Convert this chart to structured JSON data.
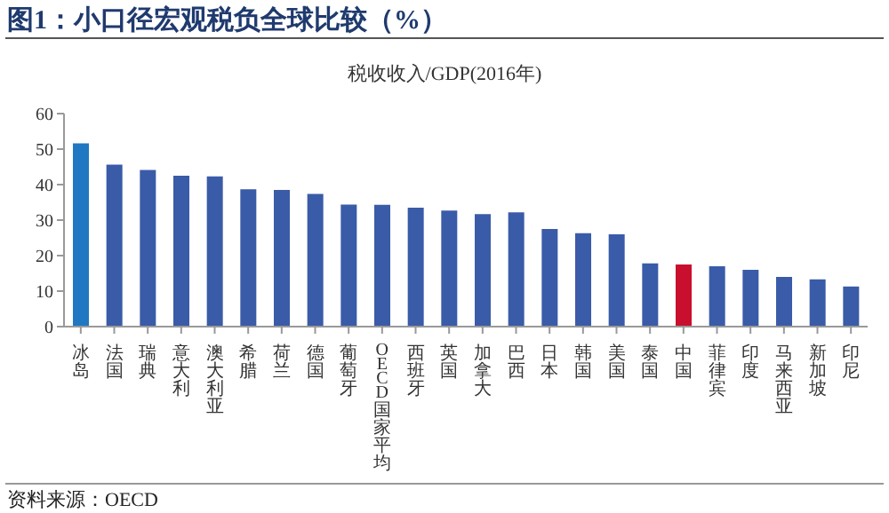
{
  "chart_data": {
    "type": "bar",
    "title": "图1：小口径宏观税负全球比较（%）",
    "subtitle": "税收收入/GDP(2016年)",
    "categories": [
      "冰岛",
      "法国",
      "瑞典",
      "意大利",
      "澳大利亚",
      "希腊",
      "荷兰",
      "德国",
      "葡萄牙",
      "OECD国家平均",
      "西班牙",
      "英国",
      "加拿大",
      "巴西",
      "日本",
      "韩国",
      "美国",
      "泰国",
      "中国",
      "菲律宾",
      "印度",
      "马来西亚",
      "新加坡",
      "印尼"
    ],
    "values": [
      51.6,
      45.6,
      44.1,
      42.5,
      42.3,
      38.7,
      38.5,
      37.4,
      34.4,
      34.3,
      33.5,
      32.7,
      31.7,
      32.2,
      27.5,
      26.3,
      26.0,
      17.8,
      17.5,
      17.0,
      16.0,
      14.0,
      13.3,
      11.3
    ],
    "colors": [
      "#1f78c1",
      "#3a5ba8",
      "#3a5ba8",
      "#3a5ba8",
      "#3a5ba8",
      "#3a5ba8",
      "#3a5ba8",
      "#3a5ba8",
      "#3a5ba8",
      "#3a5ba8",
      "#3a5ba8",
      "#3a5ba8",
      "#3a5ba8",
      "#3a5ba8",
      "#3a5ba8",
      "#3a5ba8",
      "#3a5ba8",
      "#3a5ba8",
      "#c8102e",
      "#3a5ba8",
      "#3a5ba8",
      "#3a5ba8",
      "#3a5ba8",
      "#3a5ba8"
    ],
    "ylim": [
      0,
      60
    ],
    "yticks": [
      0,
      10,
      20,
      30,
      40,
      50,
      60
    ],
    "grid": false,
    "legend": false,
    "annotations": [
      "资料来源：OECD"
    ]
  }
}
